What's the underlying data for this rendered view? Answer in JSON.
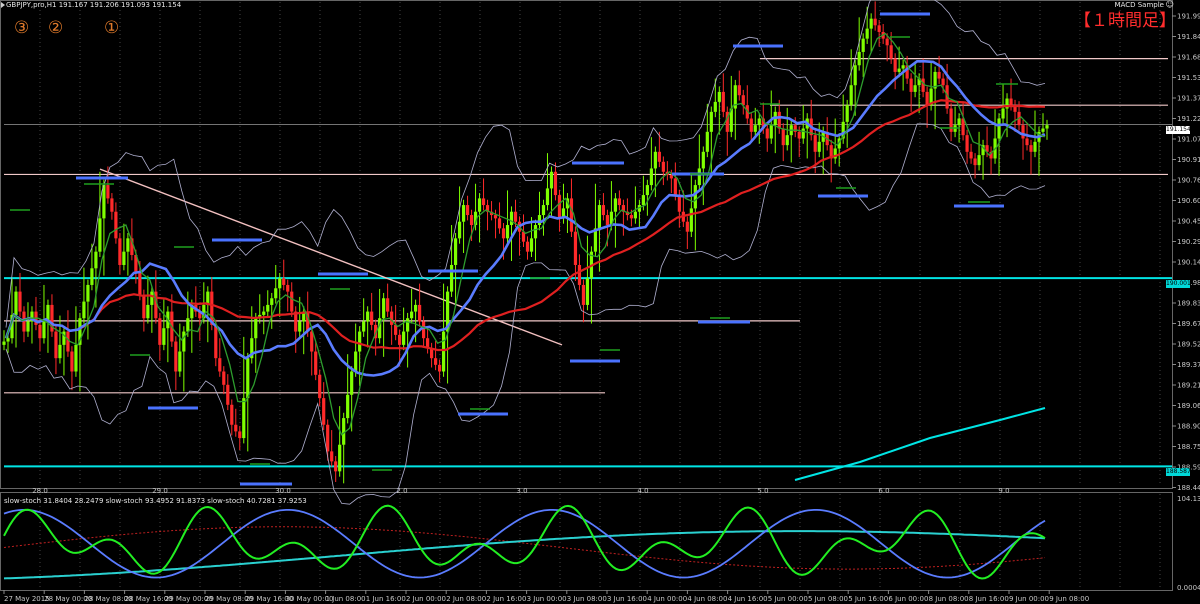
{
  "header": {
    "title": "GBPJPY,pro,H1  191.167 191.206 191.093 191.154",
    "ea_name": "MACD Sample",
    "ea_icon": "smiley-icon",
    "timeframe_label": "【１時間足】"
  },
  "annotations": {
    "marker_3": "③",
    "marker_2": "②",
    "marker_1": "①"
  },
  "colors": {
    "background": "#000000",
    "bull_candle": "#7fff00",
    "bear_candle": "#ff2a2a",
    "ma_slow": "#e02020",
    "ma_mid": "#5a7cff",
    "ma_fast": "#2e9d2e",
    "bands": "#b0b0d0",
    "level_line": "#00e5e5",
    "resistance_line": "#f0c8c8",
    "trend_line": "#f2c0c0",
    "dash_blue": "#4a72ff",
    "dash_green": "#1fa01f",
    "osc_green": "#22ee22",
    "osc_blue": "#5a7cff",
    "osc_cyan": "#2ad0d0",
    "osc_red_dotted": "#c02020"
  },
  "price_axis": {
    "ticks": [
      "191.995",
      "191.840",
      "191.685",
      "191.530",
      "191.375",
      "191.220",
      "191.070",
      "190.915",
      "190.760",
      "190.605",
      "190.450",
      "190.295",
      "190.140",
      "189.985",
      "189.830",
      "189.675",
      "189.525",
      "189.370",
      "189.215",
      "189.060",
      "188.905",
      "188.750",
      "188.595",
      "188.440"
    ],
    "current_price": "191.154",
    "level_1": "190.001",
    "level_2": "188.587"
  },
  "day_axis": {
    "labels": [
      "28.0",
      "29.0",
      "30.0",
      "2.0",
      "3.0",
      "4.0",
      "5.0",
      "6.0",
      "9.0"
    ]
  },
  "time_axis": {
    "labels": [
      "27 May 2015",
      "28 May 00:00",
      "28 May 08:00",
      "28 May 16:00",
      "29 May 00:00",
      "29 May 08:00",
      "29 May 16:00",
      "30 May 00:00",
      "1 Jun 08:00",
      "1 Jun 16:00",
      "2 Jun 00:00",
      "2 Jun 08:00",
      "2 Jun 16:00",
      "3 Jun 00:00",
      "3 Jun 08:00",
      "3 Jun 16:00",
      "4 Jun 00:00",
      "4 Jun 08:00",
      "4 Jun 16:00",
      "5 Jun 00:00",
      "5 Jun 08:00",
      "5 Jun 16:00",
      "6 Jun 00:00",
      "8 Jun 08:00",
      "8 Jun 16:00",
      "9 Jun 00:00",
      "9 Jun 08:00"
    ]
  },
  "oscillator": {
    "title": "slow-stoch 31.8404 28.2479  slow-stoch 93.4952 91.8373  slow-stoch 40.7281 37.9253",
    "axis_top": "104.136",
    "axis_bottom": "0.000417"
  },
  "chart_data": {
    "type": "candlestick",
    "symbol": "GBPJPY",
    "timeframe": "H1",
    "ohlc_last": {
      "open": 191.167,
      "high": 191.206,
      "low": 191.093,
      "close": 191.154
    },
    "ylim": [
      188.44,
      192.0
    ],
    "horizontal_levels": [
      191.65,
      191.3,
      190.78,
      190.001,
      189.68,
      189.14,
      188.587
    ],
    "close_path": [
      189.55,
      189.9,
      189.6,
      189.75,
      189.55,
      189.8,
      189.4,
      189.6,
      189.3,
      189.7,
      189.95,
      190.2,
      190.7,
      190.5,
      190.1,
      190.3,
      190.05,
      189.7,
      189.9,
      189.5,
      189.75,
      189.3,
      189.6,
      189.8,
      189.7,
      189.9,
      189.4,
      189.2,
      188.9,
      188.8,
      189.4,
      189.7,
      189.75,
      189.85,
      190.0,
      189.9,
      189.6,
      189.75,
      189.45,
      189.1,
      188.7,
      188.55,
      188.95,
      189.3,
      189.6,
      189.75,
      189.55,
      189.85,
      189.65,
      189.5,
      189.7,
      189.8,
      189.55,
      189.4,
      189.3,
      189.9,
      190.3,
      190.55,
      190.4,
      190.6,
      190.5,
      190.45,
      190.3,
      190.5,
      190.35,
      190.2,
      190.4,
      190.55,
      190.8,
      190.45,
      190.6,
      190.1,
      189.8,
      190.2,
      190.55,
      190.4,
      190.6,
      190.5,
      190.45,
      190.55,
      190.7,
      190.95,
      190.8,
      190.75,
      190.5,
      190.35,
      190.7,
      190.95,
      191.25,
      191.4,
      191.1,
      191.45,
      191.3,
      191.1,
      191.2,
      191.05,
      191.25,
      191.0,
      191.15,
      191.05,
      191.2,
      190.95,
      191.1,
      190.9,
      191.05,
      191.3,
      191.6,
      191.8,
      191.95,
      191.85,
      191.75,
      191.55,
      191.6,
      191.4,
      191.5,
      191.3,
      191.55,
      191.45,
      191.1,
      191.2,
      190.95,
      190.85,
      191.0,
      190.9,
      191.2,
      191.35,
      191.25,
      191.05,
      190.95,
      191.1,
      191.15
    ]
  }
}
